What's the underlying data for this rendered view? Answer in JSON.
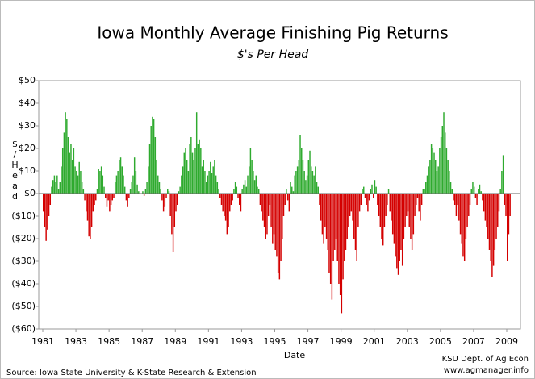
{
  "chart_data": {
    "type": "bar",
    "title": "Iowa Monthly Average Finishing Pig Returns",
    "subtitle": "$'s Per Head",
    "ylabel": "$/Head",
    "xlabel": "Date",
    "source": "Source: Iowa State University & K-State Research & Extension",
    "credit": [
      "KSU Dept. of Ag Econ",
      "www.agmanager.info"
    ],
    "positive_color": "#2eaa2e",
    "negative_color": "#d40000",
    "ylim": [
      -60,
      50
    ],
    "yticks": [
      {
        "value": 50,
        "label": "$50"
      },
      {
        "value": 40,
        "label": "$40"
      },
      {
        "value": 30,
        "label": "$30"
      },
      {
        "value": 20,
        "label": "$20"
      },
      {
        "value": 10,
        "label": "$10"
      },
      {
        "value": 0,
        "label": "$0"
      },
      {
        "value": -10,
        "label": "($10)"
      },
      {
        "value": -20,
        "label": "($20)"
      },
      {
        "value": -30,
        "label": "($30)"
      },
      {
        "value": -40,
        "label": "($40)"
      },
      {
        "value": -50,
        "label": "($50)"
      },
      {
        "value": -60,
        "label": "($60)"
      }
    ],
    "grid": false,
    "categories": [
      "1981",
      null,
      null,
      null,
      null,
      null,
      null,
      null,
      null,
      null,
      null,
      null,
      null,
      null,
      null,
      null,
      null,
      null,
      null,
      null,
      null,
      null,
      null,
      null,
      "1983",
      null,
      null,
      null,
      null,
      null,
      null,
      null,
      null,
      null,
      null,
      null,
      null,
      null,
      null,
      null,
      null,
      null,
      null,
      null,
      null,
      null,
      null,
      null,
      "1985",
      null,
      null,
      null,
      null,
      null,
      null,
      null,
      null,
      null,
      null,
      null,
      null,
      null,
      null,
      null,
      null,
      null,
      null,
      null,
      null,
      null,
      null,
      null,
      "1987",
      null,
      null,
      null,
      null,
      null,
      null,
      null,
      null,
      null,
      null,
      null,
      null,
      null,
      null,
      null,
      null,
      null,
      null,
      null,
      null,
      null,
      null,
      null,
      "1989",
      null,
      null,
      null,
      null,
      null,
      null,
      null,
      null,
      null,
      null,
      null,
      null,
      null,
      null,
      null,
      null,
      null,
      null,
      null,
      null,
      null,
      null,
      null,
      "1991",
      null,
      null,
      null,
      null,
      null,
      null,
      null,
      null,
      null,
      null,
      null,
      null,
      null,
      null,
      null,
      null,
      null,
      null,
      null,
      null,
      null,
      null,
      null,
      "1993",
      null,
      null,
      null,
      null,
      null,
      null,
      null,
      null,
      null,
      null,
      null,
      null,
      null,
      null,
      null,
      null,
      null,
      null,
      null,
      null,
      null,
      null,
      null,
      "1995",
      null,
      null,
      null,
      null,
      null,
      null,
      null,
      null,
      null,
      null,
      null,
      null,
      null,
      null,
      null,
      null,
      null,
      null,
      null,
      null,
      null,
      null,
      null,
      "1997",
      null,
      null,
      null,
      null,
      null,
      null,
      null,
      null,
      null,
      null,
      null,
      null,
      null,
      null,
      null,
      null,
      null,
      null,
      null,
      null,
      null,
      null,
      null,
      "1999",
      null,
      null,
      null,
      null,
      null,
      null,
      null,
      null,
      null,
      null,
      null,
      null,
      null,
      null,
      null,
      null,
      null,
      null,
      null,
      null,
      null,
      null,
      null,
      "2001",
      null,
      null,
      null,
      null,
      null,
      null,
      null,
      null,
      null,
      null,
      null,
      null,
      null,
      null,
      null,
      null,
      null,
      null,
      null,
      null,
      null,
      null,
      null,
      "2003",
      null,
      null,
      null,
      null,
      null,
      null,
      null,
      null,
      null,
      null,
      null,
      null,
      null,
      null,
      null,
      null,
      null,
      null,
      null,
      null,
      null,
      null,
      null,
      "2005",
      null,
      null,
      null,
      null,
      null,
      null,
      null,
      null,
      null,
      null,
      null,
      null,
      null,
      null,
      null,
      null,
      null,
      null,
      null,
      null,
      null,
      null,
      null,
      "2007",
      null,
      null,
      null,
      null,
      null,
      null,
      null,
      null,
      null,
      null,
      null,
      null,
      null,
      null,
      null,
      null,
      null,
      null,
      null,
      null,
      null,
      null,
      null,
      "2009",
      null,
      null
    ],
    "values": [
      -8,
      -15,
      -21,
      -16,
      -10,
      -5,
      3,
      6,
      8,
      5,
      8,
      2,
      5,
      12,
      20,
      27,
      36,
      33,
      25,
      18,
      22,
      15,
      20,
      12,
      10,
      8,
      14,
      10,
      5,
      2,
      -3,
      -8,
      -12,
      -19,
      -20,
      -15,
      -8,
      -5,
      -3,
      2,
      11,
      10,
      12,
      8,
      3,
      -2,
      -6,
      -3,
      -8,
      -5,
      -3,
      -2,
      5,
      8,
      10,
      15,
      16,
      12,
      8,
      3,
      -3,
      -6,
      -2,
      2,
      5,
      8,
      16,
      10,
      4,
      1,
      0,
      0,
      1,
      -1,
      2,
      5,
      12,
      22,
      30,
      34,
      33,
      25,
      15,
      8,
      5,
      2,
      -3,
      -8,
      -6,
      -2,
      2,
      1,
      -10,
      -18,
      -26,
      -15,
      -8,
      -5,
      1,
      3,
      8,
      12,
      18,
      20,
      15,
      10,
      22,
      25,
      18,
      15,
      20,
      36,
      22,
      24,
      20,
      12,
      15,
      10,
      5,
      8,
      10,
      14,
      9,
      12,
      15,
      8,
      5,
      2,
      -2,
      -5,
      -8,
      -10,
      -12,
      -18,
      -15,
      -8,
      -5,
      -3,
      2,
      5,
      3,
      -2,
      -5,
      -8,
      2,
      4,
      6,
      3,
      8,
      12,
      20,
      15,
      10,
      6,
      8,
      3,
      2,
      -5,
      -8,
      -12,
      -15,
      -20,
      -18,
      -10,
      -5,
      -15,
      -22,
      -18,
      -25,
      -28,
      -35,
      -38,
      -30,
      -20,
      -10,
      -5,
      2,
      -3,
      -8,
      5,
      3,
      1,
      8,
      10,
      12,
      15,
      26,
      20,
      15,
      10,
      6,
      8,
      15,
      19,
      12,
      10,
      8,
      12,
      5,
      3,
      -5,
      -12,
      -18,
      -22,
      -15,
      -20,
      -25,
      -35,
      -40,
      -47,
      -30,
      -25,
      -20,
      -30,
      -40,
      -45,
      -53,
      -38,
      -30,
      -25,
      -20,
      -15,
      -10,
      -8,
      -12,
      -20,
      -25,
      -30,
      -15,
      -8,
      -5,
      2,
      3,
      -2,
      -5,
      -8,
      -3,
      2,
      4,
      -2,
      6,
      3,
      -5,
      -10,
      -15,
      -20,
      -23,
      -15,
      -10,
      -5,
      2,
      -8,
      -12,
      -18,
      -22,
      -28,
      -33,
      -36,
      -30,
      -25,
      -32,
      -20,
      -15,
      -10,
      -8,
      -15,
      -20,
      -25,
      -18,
      -10,
      -5,
      -2,
      -8,
      -12,
      -5,
      2,
      2,
      5,
      8,
      12,
      15,
      22,
      20,
      18,
      15,
      10,
      12,
      20,
      25,
      30,
      36,
      27,
      20,
      15,
      10,
      5,
      2,
      -3,
      -5,
      -10,
      -5,
      -12,
      -18,
      -22,
      -28,
      -30,
      -20,
      -15,
      -10,
      -5,
      2,
      5,
      3,
      -2,
      -5,
      2,
      4,
      1,
      -3,
      -8,
      -12,
      -15,
      -20,
      -25,
      -30,
      -37,
      -32,
      -25,
      -20,
      -15,
      -8,
      2,
      10,
      17,
      -5,
      -10,
      -30,
      -18,
      -10
    ]
  }
}
